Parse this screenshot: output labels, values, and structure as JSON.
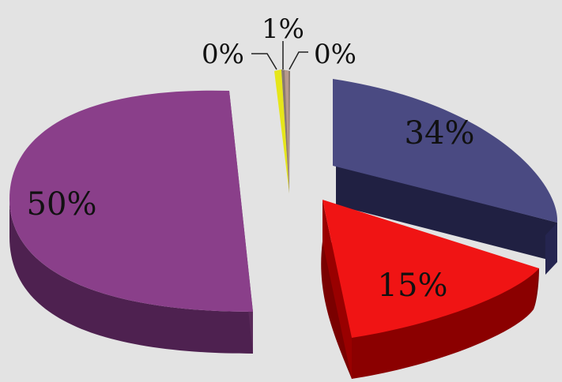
{
  "chart_data": {
    "type": "pie",
    "style": "3d-exploded",
    "slices": [
      {
        "label": "34%",
        "value": 34,
        "color": "#4a4a82"
      },
      {
        "label": "15%",
        "value": 15,
        "color": "#f01414"
      },
      {
        "label": "50%",
        "value": 50,
        "color": "#8a3f8a"
      },
      {
        "label": "0%",
        "value": 0.3,
        "color": "#e6e61a"
      },
      {
        "label": "1%",
        "value": 0.7,
        "color": "#8a7a70"
      },
      {
        "label": "0%",
        "value": 0.2,
        "color": "#b89a8c"
      }
    ],
    "legend": false
  }
}
